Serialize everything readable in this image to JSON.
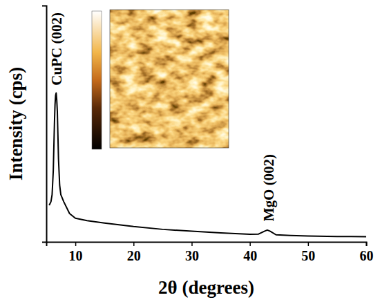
{
  "chart_data": {
    "type": "line",
    "x_label": "2θ (degrees)",
    "y_label": "Intensity (cps)",
    "x": [
      5.5,
      5.8,
      6.0,
      6.2,
      6.3,
      6.4,
      6.5,
      6.6,
      6.7,
      6.8,
      6.9,
      7.0,
      7.1,
      7.3,
      7.5,
      8.0,
      9.0,
      10,
      12,
      15,
      20,
      25,
      30,
      35,
      40,
      41.5,
      42.5,
      43,
      43.5,
      44.5,
      47,
      50,
      55,
      60
    ],
    "values": [
      15.5,
      17,
      20,
      30,
      40,
      50,
      58,
      62,
      63,
      60,
      55,
      45,
      35,
      24,
      20,
      17,
      12,
      10,
      9,
      8,
      6.5,
      5.3,
      4.5,
      3.8,
      3.2,
      3.3,
      4.5,
      5,
      4.5,
      3,
      2.7,
      2.5,
      2.3,
      2.2
    ],
    "color": "#000000",
    "line_style": "solid",
    "xlim": [
      5,
      60
    ],
    "xticks": [
      10,
      20,
      30,
      40,
      50,
      60
    ],
    "ylim": [
      0,
      100
    ],
    "tick_labels": "x",
    "annotations": [
      {
        "text": "CuPC (002)",
        "x": 6.8,
        "y": 65
      },
      {
        "text": "MgO (002)",
        "x": 43.2,
        "y": 7.5
      }
    ]
  }
}
